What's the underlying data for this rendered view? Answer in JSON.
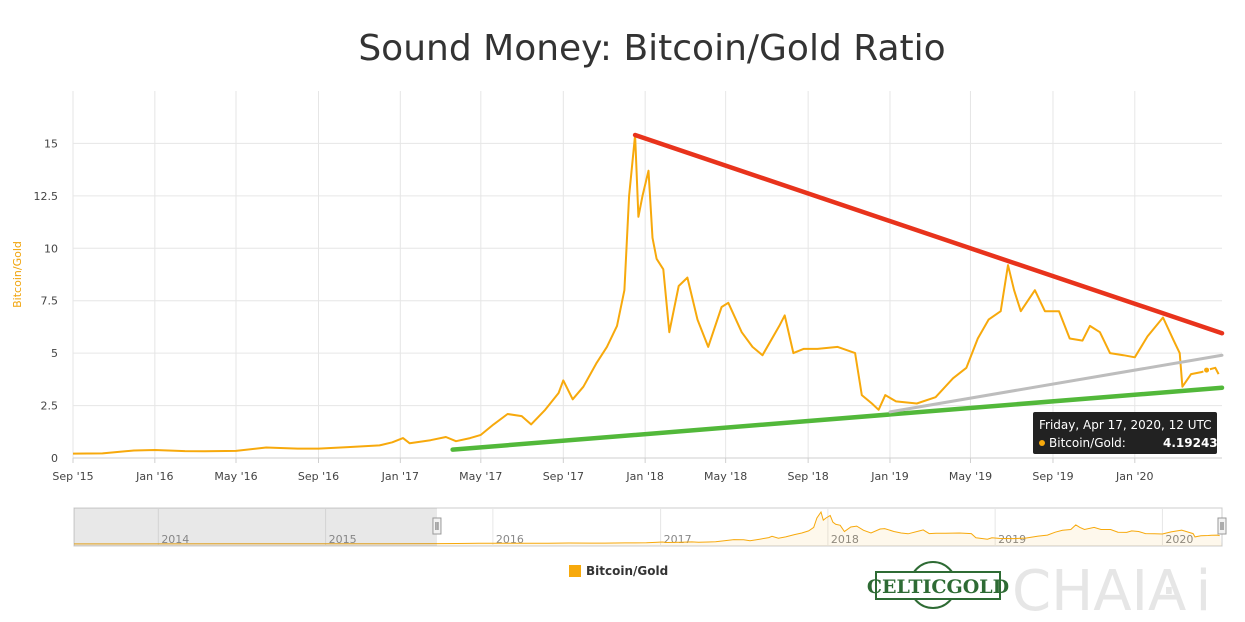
{
  "chart_data": {
    "type": "line",
    "title": "Sound Money: Bitcoin/Gold Ratio",
    "ylabel": "Bitcoin/Gold",
    "ylim": [
      0,
      17.5
    ],
    "yticks": [
      0,
      2.5,
      5,
      7.5,
      10,
      12.5,
      15
    ],
    "ytick_labels": [
      "0",
      "2.5",
      "5",
      "7.5",
      "10",
      "12.5",
      "15"
    ],
    "xlim": [
      "2015-09-01",
      "2020-05-10"
    ],
    "xticks": [
      "2015-09-01",
      "2016-01-01",
      "2016-05-01",
      "2016-09-01",
      "2017-01-01",
      "2017-05-01",
      "2017-09-01",
      "2018-01-01",
      "2018-05-01",
      "2018-09-01",
      "2019-01-01",
      "2019-05-01",
      "2019-09-01",
      "2020-01-01"
    ],
    "xtick_labels": [
      "Sep '15",
      "Jan '16",
      "May '16",
      "Sep '16",
      "Jan '17",
      "May '17",
      "Sep '17",
      "Jan '18",
      "May '18",
      "Sep '18",
      "Jan '19",
      "May '19",
      "Sep '19",
      "Jan '20"
    ],
    "grid": true,
    "legend_position": "bottom-center",
    "series": [
      {
        "name": "Bitcoin/Gold",
        "color": "#f7a90c",
        "points": [
          [
            "2015-09-01",
            0.21
          ],
          [
            "2015-10-15",
            0.22
          ],
          [
            "2015-11-10",
            0.3
          ],
          [
            "2015-12-01",
            0.36
          ],
          [
            "2016-01-01",
            0.38
          ],
          [
            "2016-02-15",
            0.33
          ],
          [
            "2016-03-15",
            0.32
          ],
          [
            "2016-05-01",
            0.34
          ],
          [
            "2016-06-15",
            0.5
          ],
          [
            "2016-08-01",
            0.45
          ],
          [
            "2016-09-01",
            0.45
          ],
          [
            "2016-10-15",
            0.52
          ],
          [
            "2016-12-01",
            0.6
          ],
          [
            "2016-12-20",
            0.75
          ],
          [
            "2017-01-05",
            0.95
          ],
          [
            "2017-01-15",
            0.7
          ],
          [
            "2017-02-15",
            0.85
          ],
          [
            "2017-03-10",
            1.0
          ],
          [
            "2017-03-25",
            0.8
          ],
          [
            "2017-04-15",
            0.95
          ],
          [
            "2017-05-01",
            1.1
          ],
          [
            "2017-05-20",
            1.6
          ],
          [
            "2017-06-10",
            2.1
          ],
          [
            "2017-07-01",
            2.0
          ],
          [
            "2017-07-15",
            1.6
          ],
          [
            "2017-08-05",
            2.3
          ],
          [
            "2017-08-25",
            3.1
          ],
          [
            "2017-09-01",
            3.7
          ],
          [
            "2017-09-15",
            2.8
          ],
          [
            "2017-10-01",
            3.4
          ],
          [
            "2017-10-20",
            4.5
          ],
          [
            "2017-11-05",
            5.3
          ],
          [
            "2017-11-20",
            6.3
          ],
          [
            "2017-12-01",
            8.0
          ],
          [
            "2017-12-08",
            12.5
          ],
          [
            "2017-12-17",
            15.4
          ],
          [
            "2017-12-22",
            11.5
          ],
          [
            "2017-12-28",
            12.5
          ],
          [
            "2018-01-06",
            13.7
          ],
          [
            "2018-01-12",
            10.5
          ],
          [
            "2018-01-18",
            9.5
          ],
          [
            "2018-01-28",
            9.0
          ],
          [
            "2018-02-06",
            6.0
          ],
          [
            "2018-02-20",
            8.2
          ],
          [
            "2018-03-05",
            8.6
          ],
          [
            "2018-03-20",
            6.6
          ],
          [
            "2018-04-05",
            5.3
          ],
          [
            "2018-04-25",
            7.2
          ],
          [
            "2018-05-05",
            7.4
          ],
          [
            "2018-05-25",
            6.0
          ],
          [
            "2018-06-10",
            5.3
          ],
          [
            "2018-06-25",
            4.9
          ],
          [
            "2018-07-20",
            6.3
          ],
          [
            "2018-07-28",
            6.8
          ],
          [
            "2018-08-10",
            5.0
          ],
          [
            "2018-08-25",
            5.2
          ],
          [
            "2018-09-15",
            5.2
          ],
          [
            "2018-10-15",
            5.3
          ],
          [
            "2018-11-10",
            5.0
          ],
          [
            "2018-11-20",
            3.0
          ],
          [
            "2018-12-05",
            2.6
          ],
          [
            "2018-12-15",
            2.3
          ],
          [
            "2018-12-25",
            3.0
          ],
          [
            "2019-01-10",
            2.7
          ],
          [
            "2019-02-10",
            2.6
          ],
          [
            "2019-03-10",
            2.9
          ],
          [
            "2019-04-05",
            3.8
          ],
          [
            "2019-04-25",
            4.3
          ],
          [
            "2019-05-12",
            5.7
          ],
          [
            "2019-05-28",
            6.6
          ],
          [
            "2019-06-15",
            7.0
          ],
          [
            "2019-06-26",
            9.2
          ],
          [
            "2019-07-05",
            8.0
          ],
          [
            "2019-07-15",
            7.0
          ],
          [
            "2019-08-05",
            8.0
          ],
          [
            "2019-08-20",
            7.0
          ],
          [
            "2019-09-10",
            7.0
          ],
          [
            "2019-09-26",
            5.7
          ],
          [
            "2019-10-15",
            5.6
          ],
          [
            "2019-10-26",
            6.3
          ],
          [
            "2019-11-10",
            6.0
          ],
          [
            "2019-11-25",
            5.0
          ],
          [
            "2019-12-15",
            4.9
          ],
          [
            "2020-01-01",
            4.8
          ],
          [
            "2020-01-20",
            5.8
          ],
          [
            "2020-02-12",
            6.7
          ],
          [
            "2020-02-28",
            5.6
          ],
          [
            "2020-03-08",
            5.0
          ],
          [
            "2020-03-12",
            3.4
          ],
          [
            "2020-03-25",
            4.0
          ],
          [
            "2020-04-10",
            4.1
          ],
          [
            "2020-04-17",
            4.19243
          ],
          [
            "2020-04-30",
            4.3
          ],
          [
            "2020-05-05",
            4.0
          ]
        ]
      }
    ],
    "trendlines": [
      {
        "color": "#e8331c",
        "from": [
          "2017-12-17",
          15.4
        ],
        "to": [
          "2020-05-10",
          5.95
        ]
      },
      {
        "color": "#52b83a",
        "from": [
          "2017-03-20",
          0.4
        ],
        "to": [
          "2020-05-10",
          3.35
        ]
      },
      {
        "color": "#bdbdbd",
        "from": [
          "2019-01-01",
          2.2
        ],
        "to": [
          "2020-05-10",
          4.9
        ]
      }
    ],
    "tooltip": {
      "title": "Friday, Apr 17, 2020, 12 UTC",
      "series_label": "Bitcoin/Gold:",
      "value": "4.19243",
      "x": "2020-04-17",
      "y": 4.19243
    },
    "navigator": {
      "xlim": [
        "2013-07-01",
        "2020-05-10"
      ],
      "labels": [
        "2014",
        "2015",
        "2016",
        "2017",
        "2018",
        "2019",
        "2020"
      ],
      "label_dates": [
        "2014-01-01",
        "2015-01-01",
        "2016-01-01",
        "2017-01-01",
        "2018-01-01",
        "2019-01-01",
        "2020-01-01"
      ],
      "selected": [
        "2015-09-01",
        "2020-05-10"
      ]
    },
    "legend": [
      {
        "label": "Bitcoin/Gold",
        "color": "#f7a90c"
      }
    ]
  },
  "logos": {
    "celticgold": "CELTICGOLD",
    "chaia": "CHAIA",
    "chaia_suffix": "· i"
  }
}
